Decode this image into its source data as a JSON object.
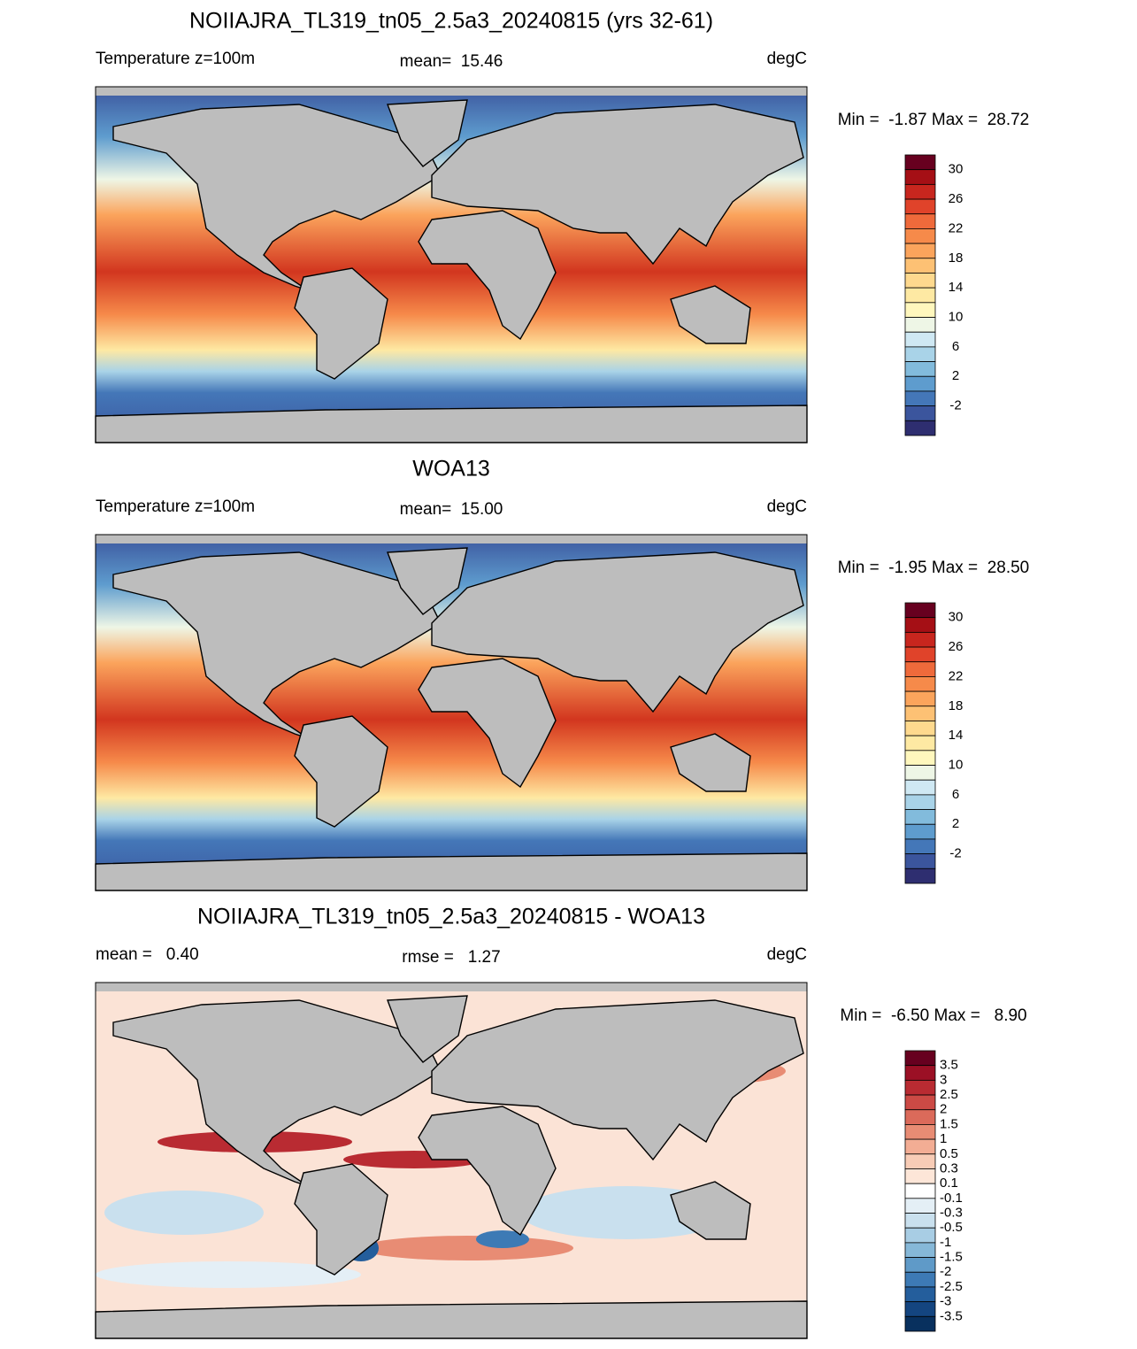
{
  "panels": [
    {
      "title": "NOIIAJRA_TL319_tn05_2.5a3_20240815 (yrs 32-61)",
      "label_left": "Temperature z=100m",
      "label_center": "mean=  15.46",
      "units": "degC",
      "minmax": "Min =  -1.87 Max =  28.72",
      "colorbar": {
        "labels": [
          "30",
          "26",
          "22",
          "18",
          "14",
          "10",
          "6",
          "2",
          "-2"
        ],
        "colors": [
          "#67001f",
          "#a50f15",
          "#c8261e",
          "#e0432a",
          "#ef6a3b",
          "#f68a4a",
          "#fba45c",
          "#fdc174",
          "#fed98e",
          "#fee9a3",
          "#fff7bd",
          "#eef6e6",
          "#cfe8f3",
          "#a9d3e8",
          "#82bbdc",
          "#5e9cce",
          "#4477b8",
          "#3b559d",
          "#2e2e70"
        ]
      }
    },
    {
      "title": "WOA13",
      "label_left": "Temperature z=100m",
      "label_center": "mean=  15.00",
      "units": "degC",
      "minmax": "Min =  -1.95 Max =  28.50",
      "colorbar": {
        "labels": [
          "30",
          "26",
          "22",
          "18",
          "14",
          "10",
          "6",
          "2",
          "-2"
        ],
        "colors": [
          "#67001f",
          "#a50f15",
          "#c8261e",
          "#e0432a",
          "#ef6a3b",
          "#f68a4a",
          "#fba45c",
          "#fdc174",
          "#fed98e",
          "#fee9a3",
          "#fff7bd",
          "#eef6e6",
          "#cfe8f3",
          "#a9d3e8",
          "#82bbdc",
          "#5e9cce",
          "#4477b8",
          "#3b559d",
          "#2e2e70"
        ]
      }
    },
    {
      "title": "NOIIAJRA_TL319_tn05_2.5a3_20240815 - WOA13",
      "label_left": "mean =   0.40",
      "label_center": "rmse =   1.27",
      "units": "degC",
      "minmax": "Min =  -6.50 Max =   8.90",
      "colorbar": {
        "labels": [
          "3.5",
          "3",
          "2.5",
          "2",
          "1.5",
          "1",
          "0.5",
          "0.3",
          "0.1",
          "-0.1",
          "-0.3",
          "-0.5",
          "-1",
          "-1.5",
          "-2",
          "-2.5",
          "-3",
          "-3.5"
        ],
        "colors": [
          "#67001f",
          "#9b1025",
          "#b92b32",
          "#cc4a45",
          "#db6a5a",
          "#e88c74",
          "#f3ad94",
          "#f8ccb6",
          "#fde6d8",
          "#ffffff",
          "#e4eff6",
          "#c9e0ee",
          "#a8cde4",
          "#86b8d8",
          "#5f9ac8",
          "#3d7ab5",
          "#245e9c",
          "#144580",
          "#08305e"
        ]
      }
    }
  ]
}
